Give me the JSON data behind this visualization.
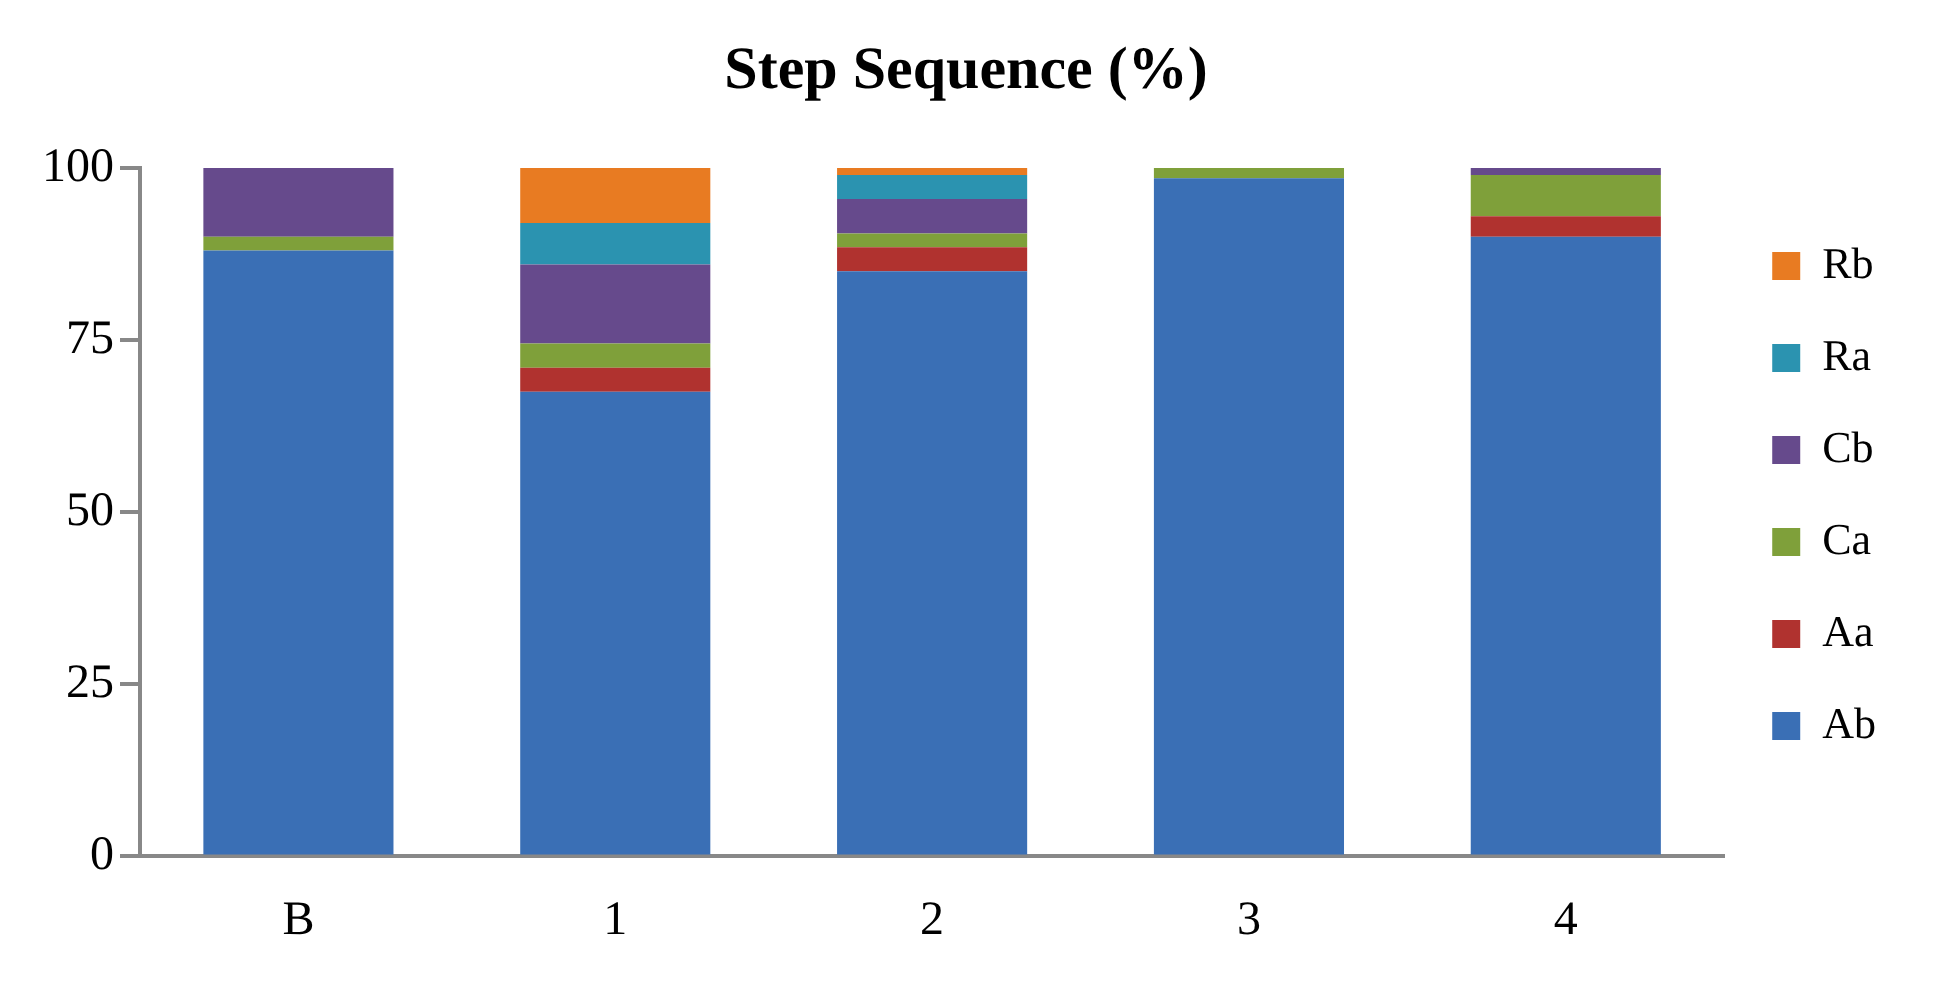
{
  "chart_data": {
    "type": "bar",
    "title": "Step Sequence (%)",
    "categories": [
      "B",
      "1",
      "2",
      "3",
      "4"
    ],
    "stacked": true,
    "ylim": [
      0,
      100
    ],
    "yticks": [
      0,
      25,
      50,
      75,
      100
    ],
    "grid": false,
    "legend": "right",
    "series": [
      {
        "name": "Ab",
        "color": "#3a6fb5",
        "values": [
          88,
          67.5,
          85,
          98.5,
          90
        ]
      },
      {
        "name": "Aa",
        "color": "#b0322f",
        "values": [
          0,
          3.5,
          3.5,
          0,
          3
        ]
      },
      {
        "name": "Ca",
        "color": "#7fa03a",
        "values": [
          2,
          3.5,
          2,
          1.5,
          6
        ]
      },
      {
        "name": "Cb",
        "color": "#664a8c",
        "values": [
          10,
          11.5,
          5,
          0,
          1
        ]
      },
      {
        "name": "Ra",
        "color": "#2b93b0",
        "values": [
          0,
          6,
          3.5,
          0,
          0
        ]
      },
      {
        "name": "Rb",
        "color": "#e87b22",
        "values": [
          0,
          8,
          1,
          0,
          0
        ]
      }
    ]
  }
}
